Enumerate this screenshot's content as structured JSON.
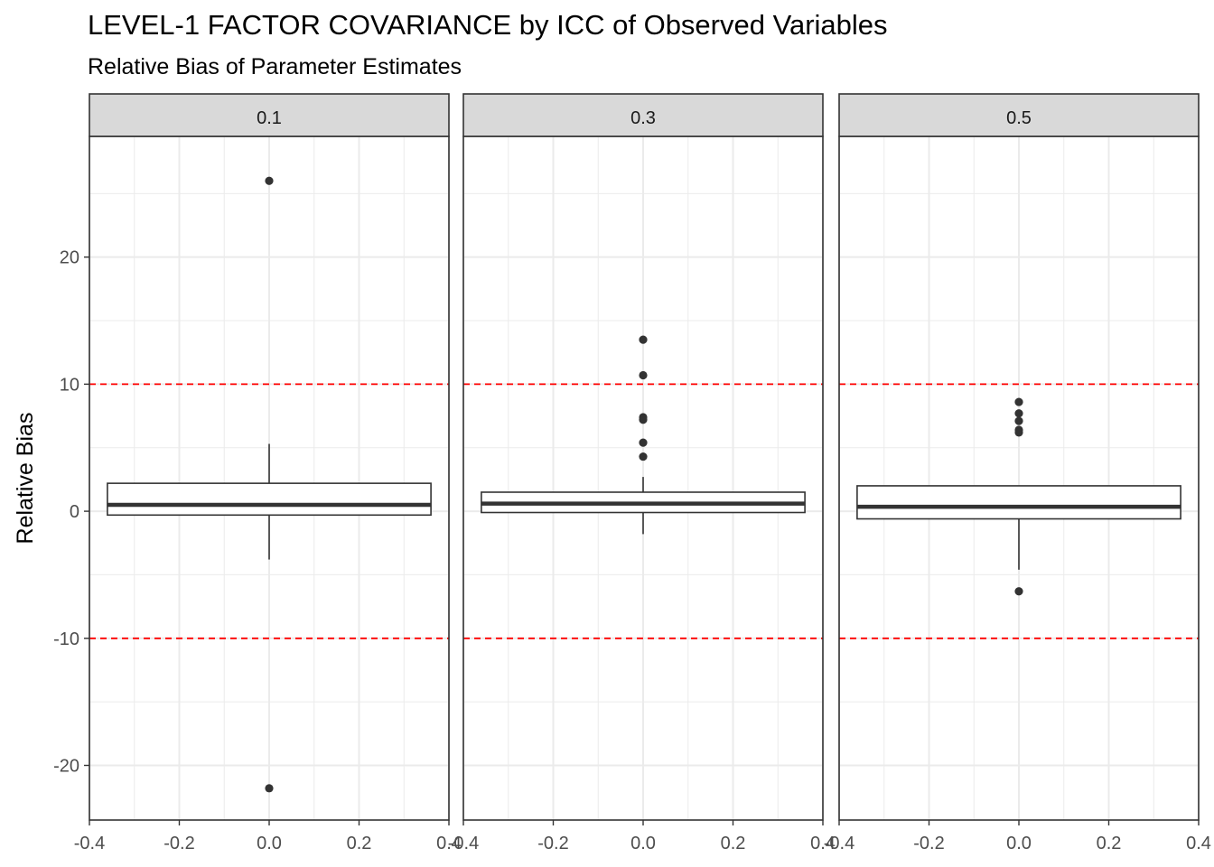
{
  "chart_data": {
    "type": "boxplot",
    "title": "LEVEL-1 FACTOR COVARIANCE by ICC of Observed Variables",
    "subtitle": "Relative Bias of Parameter Estimates",
    "xlabel": "",
    "ylabel": "Relative Bias",
    "xlim": [
      -0.4,
      0.4
    ],
    "ylim": [
      -24.3,
      29.5
    ],
    "x_ticks": [
      -0.4,
      -0.2,
      0.0,
      0.2,
      0.4
    ],
    "x_tick_labels": [
      "-0.4",
      "-0.2",
      "0.0",
      "0.2",
      "0.4"
    ],
    "y_ticks": [
      -20,
      -10,
      0,
      10,
      20
    ],
    "y_tick_labels": [
      "-20",
      "-10",
      "0",
      "10",
      "20"
    ],
    "reference_lines": [
      10,
      -10
    ],
    "reference_line_color": "#ff0000",
    "grid": true,
    "panels": [
      {
        "label": "0.1",
        "box": {
          "x": 0,
          "q1": -0.3,
          "median": 0.5,
          "q3": 2.2,
          "whisker_low": -3.8,
          "whisker_high": 5.3
        },
        "outliers": [
          26.0,
          -21.8
        ]
      },
      {
        "label": "0.3",
        "box": {
          "x": 0,
          "q1": -0.1,
          "median": 0.6,
          "q3": 1.5,
          "whisker_low": -1.8,
          "whisker_high": 2.7
        },
        "outliers": [
          13.5,
          10.7,
          7.4,
          7.2,
          5.4,
          4.3
        ]
      },
      {
        "label": "0.5",
        "box": {
          "x": 0,
          "q1": -0.6,
          "median": 0.35,
          "q3": 2.0,
          "whisker_low": -4.6,
          "whisker_high": 2.0
        },
        "outliers": [
          8.6,
          7.7,
          7.1,
          6.4,
          6.2,
          -6.3
        ]
      }
    ]
  },
  "colors": {
    "strip_fill": "#d9d9d9",
    "panel_border": "#333333",
    "grid": "#ebebeb",
    "box_line": "#333333",
    "outlier": "#333333",
    "tick_text": "#4d4d4d"
  }
}
